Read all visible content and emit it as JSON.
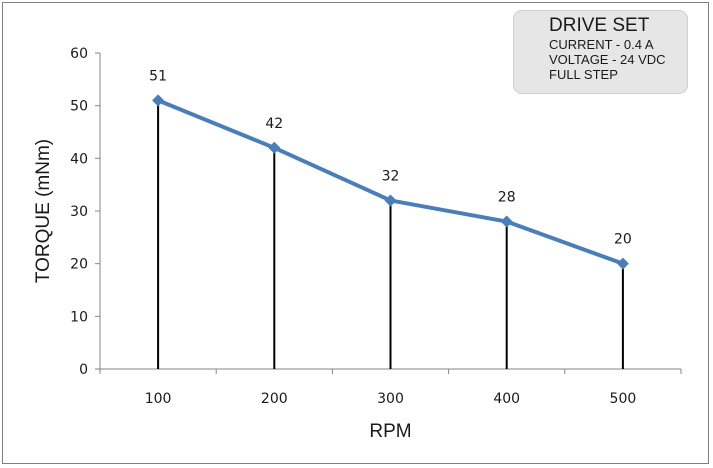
{
  "chart_data": {
    "type": "line",
    "xlabel": "RPM",
    "ylabel": "TORQUE (mNm)",
    "categories": [
      "100",
      "200",
      "300",
      "400",
      "500"
    ],
    "values": [
      51,
      42,
      32,
      28,
      20
    ],
    "data_labels": [
      "51",
      "42",
      "32",
      "28",
      "20"
    ],
    "ylim": [
      0,
      60
    ],
    "y_ticks": [
      "0",
      "10",
      "20",
      "30",
      "40",
      "50",
      "60"
    ],
    "grid": false,
    "drop_lines": true,
    "line_color": "#4a7ebb",
    "drop_line_color": "#000000",
    "legend_placement": "top-right"
  },
  "drive_set": {
    "title": "DRIVE SET",
    "lines": [
      "CURRENT - 0.4 A",
      "VOLTAGE - 24 VDC",
      "FULL STEP"
    ]
  }
}
